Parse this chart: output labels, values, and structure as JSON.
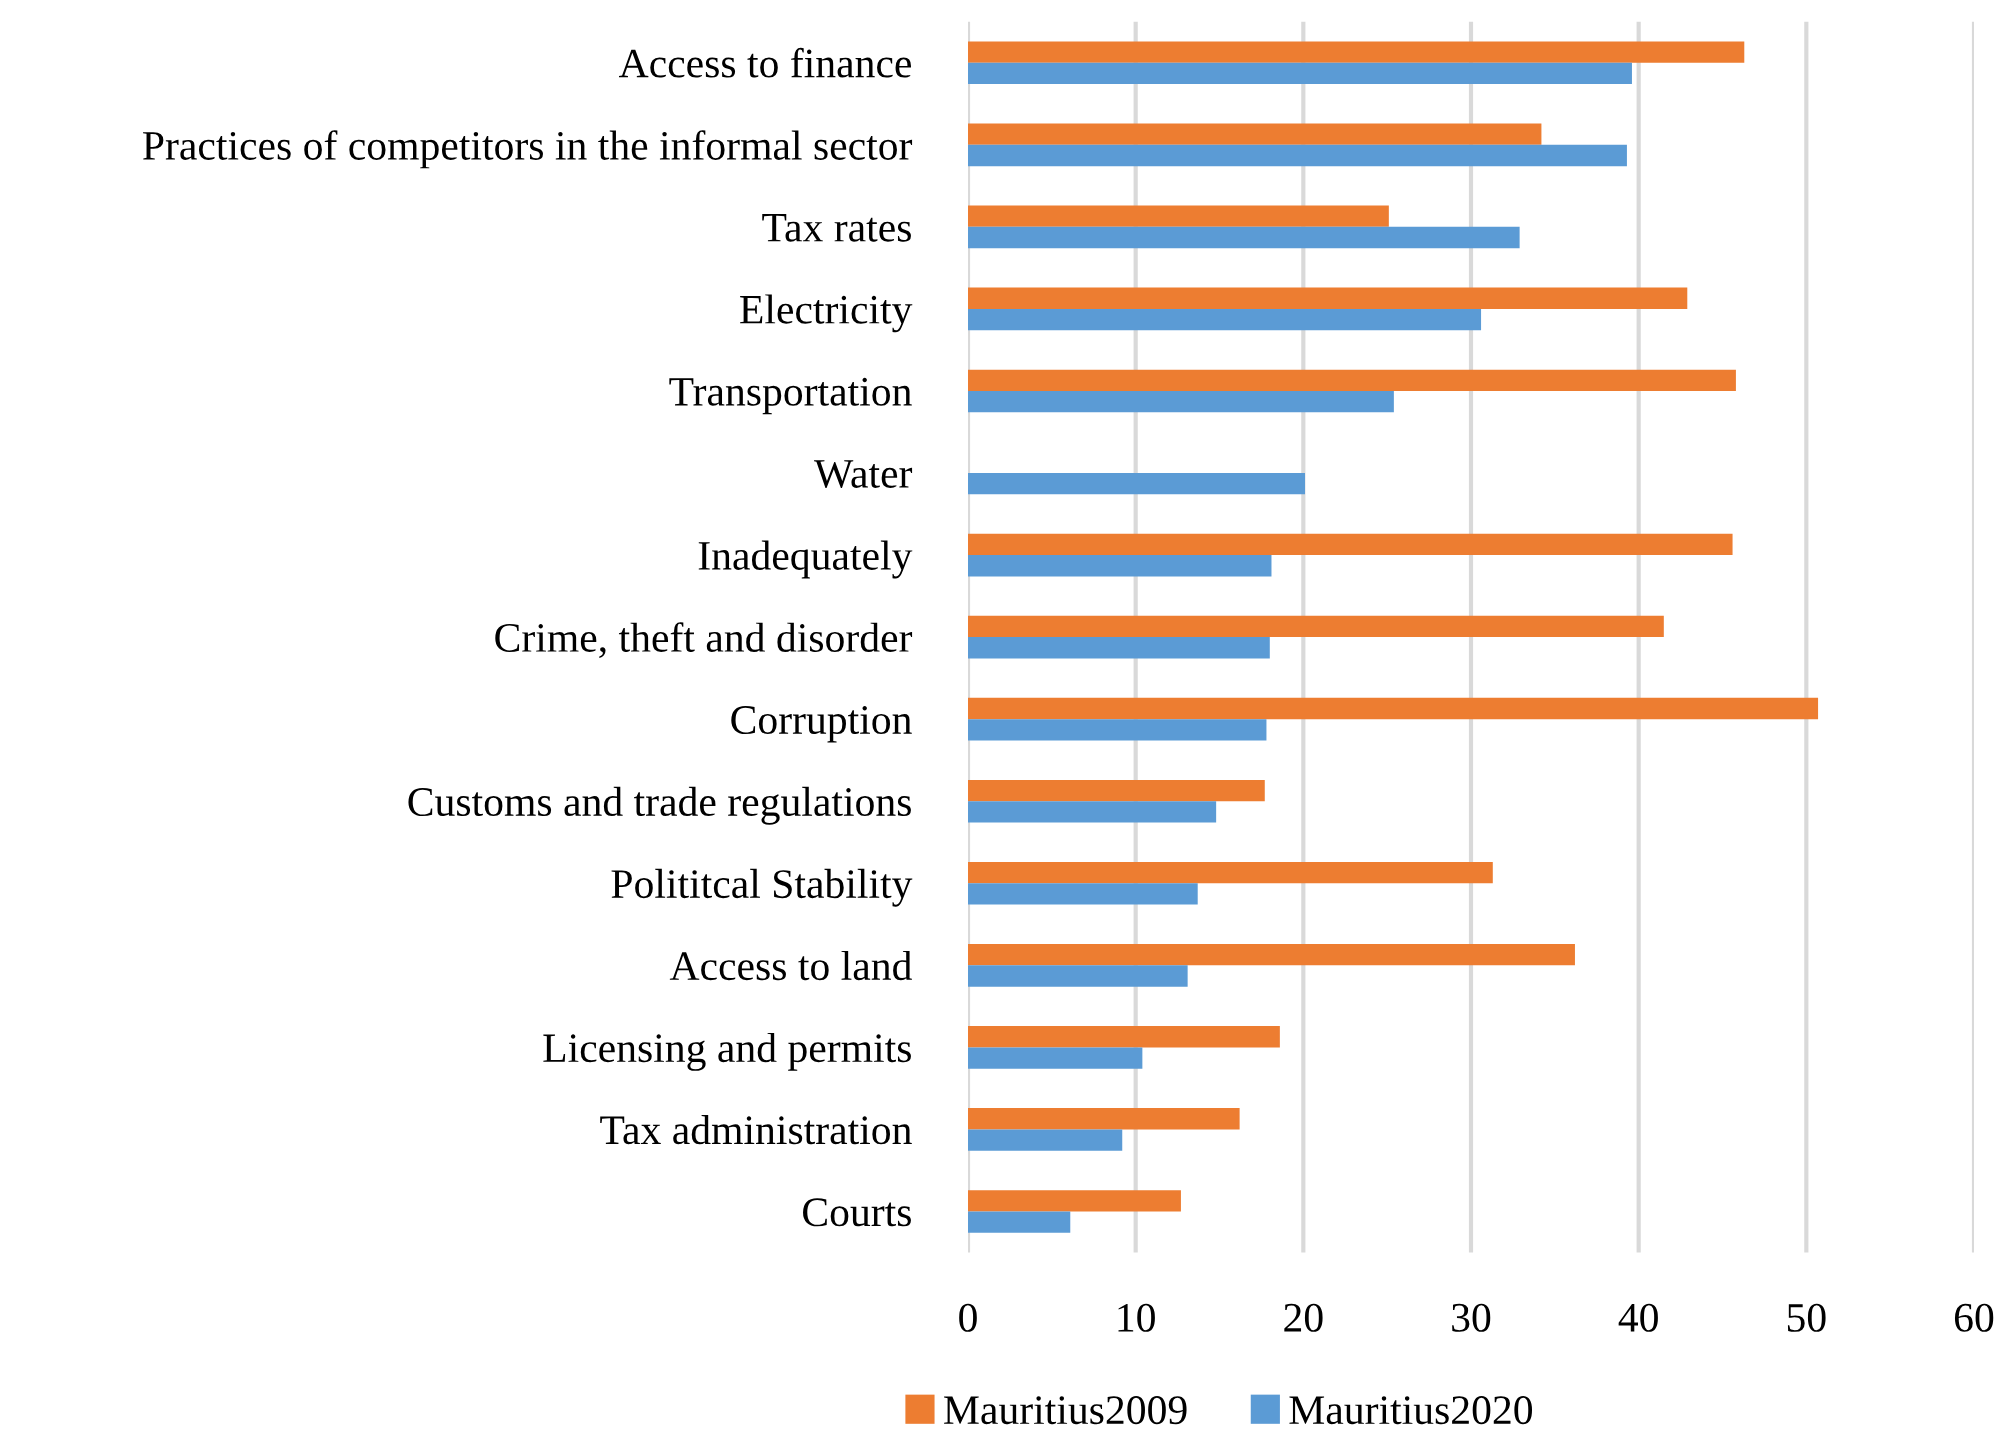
{
  "chart_data": {
    "type": "bar",
    "orientation": "horizontal",
    "categories": [
      "Access to finance",
      "Practices of competitors in the informal sector",
      "Tax rates",
      "Electricity",
      "Transportation",
      "Water",
      "Inadequately",
      "Crime, theft and disorder",
      "Corruption",
      "Customs and trade regulations",
      "Polititcal Stability",
      "Access to land",
      "Licensing and permits",
      "Tax administration",
      "Courts"
    ],
    "series": [
      {
        "name": "Mauritius2009",
        "color": "#ed7d31",
        "values": [
          46.3,
          34.2,
          25.1,
          42.9,
          45.8,
          null,
          45.6,
          41.5,
          50.7,
          17.7,
          31.3,
          36.2,
          18.6,
          16.2,
          12.7
        ]
      },
      {
        "name": "Mauritius2020",
        "color": "#5b9bd5",
        "values": [
          39.6,
          39.3,
          32.9,
          30.6,
          25.4,
          20.1,
          18.1,
          18.0,
          17.8,
          14.8,
          13.7,
          13.1,
          10.4,
          9.2,
          6.1
        ]
      }
    ],
    "xlim": [
      0,
      60
    ],
    "xticks": [
      0,
      10,
      20,
      30,
      40,
      50,
      60
    ],
    "grid": "x",
    "legend": "bottom"
  }
}
